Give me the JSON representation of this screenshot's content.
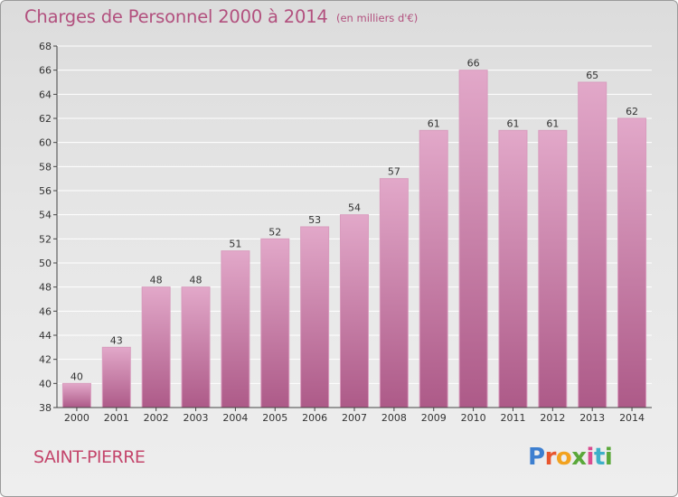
{
  "title": "Charges de Personnel 2000 à 2014",
  "subtitle": "(en milliers d'€)",
  "location": "SAINT-PIERRE",
  "logo": {
    "text": "Proxiti",
    "letters": [
      "P",
      "r",
      "o",
      "x",
      "i",
      "t",
      "i"
    ]
  },
  "colors": {
    "title": "#b2507e",
    "bar_top": "#e2a8c9",
    "bar_bottom": "#ad5a88",
    "axis": "#444444"
  },
  "chart_data": {
    "type": "bar",
    "categories": [
      "2000",
      "2001",
      "2002",
      "2003",
      "2004",
      "2005",
      "2006",
      "2007",
      "2008",
      "2009",
      "2010",
      "2011",
      "2012",
      "2013",
      "2014"
    ],
    "values": [
      40,
      43,
      48,
      48,
      51,
      52,
      53,
      54,
      57,
      61,
      66,
      61,
      61,
      65,
      62
    ],
    "ylim": [
      38,
      68
    ],
    "yticks": [
      38,
      40,
      42,
      44,
      46,
      48,
      50,
      52,
      54,
      56,
      58,
      60,
      62,
      64,
      66,
      68
    ],
    "title": "Charges de Personnel 2000 à 2014",
    "subtitle": "(en milliers d'€)",
    "xlabel": "",
    "ylabel": "",
    "grid": true
  }
}
